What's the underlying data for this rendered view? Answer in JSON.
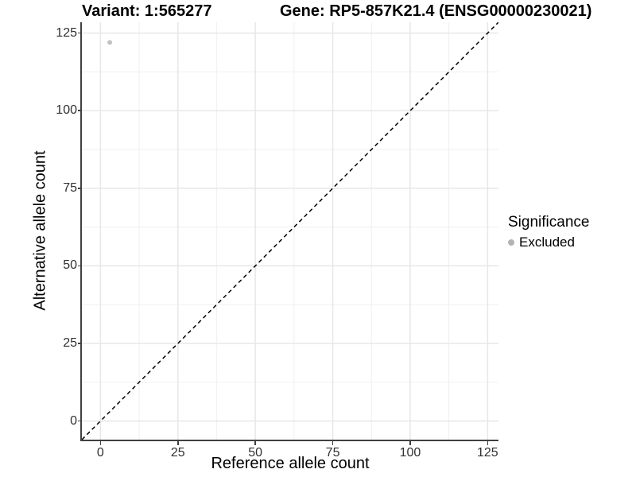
{
  "chart_data": {
    "type": "scatter",
    "title_variant": "Variant: 1:565277",
    "title_gene": "Gene: RP5-857K21.4 (ENSG00000230021)",
    "xlabel": "Reference allele count",
    "ylabel": "Alternative allele count",
    "xlim": [
      -6,
      128.5
    ],
    "ylim": [
      -6,
      128.5
    ],
    "x_ticks": [
      0,
      25,
      50,
      75,
      100,
      125
    ],
    "y_ticks": [
      0,
      25,
      50,
      75,
      100,
      125
    ],
    "grid": {
      "major": true,
      "minor": true
    },
    "identity_line": {
      "style": "dashed",
      "x1": -6,
      "y1": -6,
      "x2": 128.5,
      "y2": 128.5
    },
    "points": [
      {
        "x": 3,
        "y": 122,
        "series": "Excluded"
      }
    ],
    "legend": {
      "position": "right",
      "title": "Significance",
      "items": [
        {
          "label": "Excluded",
          "color": "#b3b3b3"
        }
      ]
    },
    "colors": {
      "excluded_point": "#c2c2c2",
      "grid_major": "#e7e7e7",
      "grid_minor": "#f2f2f2",
      "axis_line": "#404040",
      "tick_text": "#303030",
      "identity_line": "#000000"
    }
  }
}
